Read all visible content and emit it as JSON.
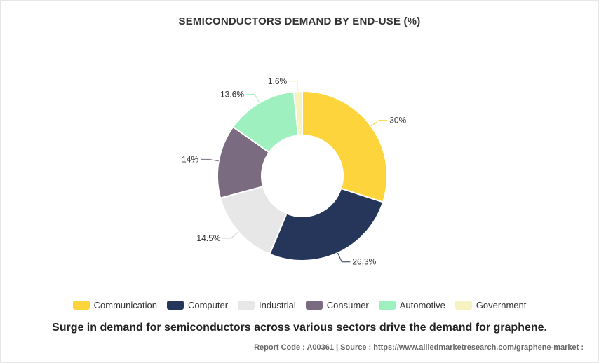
{
  "chart_data": {
    "type": "pie",
    "title": "SEMICONDUCTORS DEMAND BY END-USE (%)",
    "categories": [
      "Communication",
      "Computer",
      "Industrial",
      "Consumer",
      "Automotive",
      "Government"
    ],
    "values": [
      30,
      26.3,
      14.5,
      14,
      13.6,
      1.6
    ],
    "labels": [
      "30%",
      "26.3%",
      "14.5%",
      "14%",
      "13.6%",
      "1.6%"
    ],
    "colors": [
      "#fdd43b",
      "#25365a",
      "#e7e7e7",
      "#7b6b80",
      "#9ff0bf",
      "#f6f3c0"
    ],
    "legend_position": "bottom"
  },
  "footnote": "Surge in demand for semiconductors across various sectors drive the demand for graphene.",
  "source_line": "Report Code : A00361  |  Source : https://www.alliedmarketresearch.com/graphene-market :"
}
